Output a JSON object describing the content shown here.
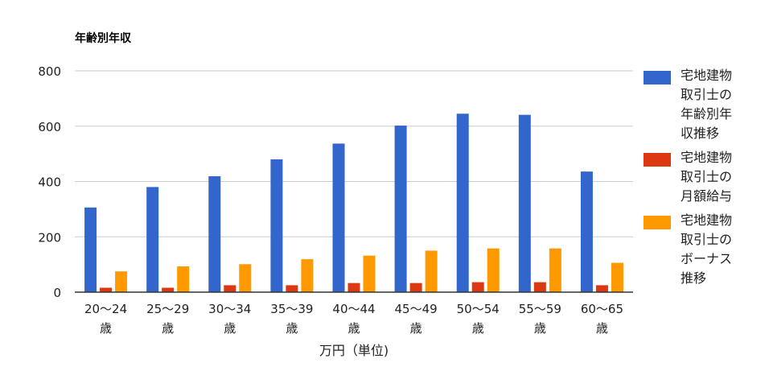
{
  "chart_data": {
    "type": "bar",
    "title": "年齢別年収",
    "xlabel": "万円（単位)",
    "ylabel": "",
    "ylim": [
      0,
      800
    ],
    "yticks": [
      0,
      200,
      400,
      600,
      800
    ],
    "grid": true,
    "legend": "right",
    "categories": [
      [
        "20～24",
        "歳"
      ],
      [
        "25～29",
        "歳"
      ],
      [
        "30～34",
        "歳"
      ],
      [
        "35～39",
        "歳"
      ],
      [
        "40～44",
        "歳"
      ],
      [
        "45～49",
        "歳"
      ],
      [
        "50～54",
        "歳"
      ],
      [
        "55～59",
        "歳"
      ],
      [
        "60～65",
        "歳"
      ]
    ],
    "series": [
      {
        "name": "宅地建物取引士の年齢別年収推移",
        "color": "#3366cc",
        "values": [
          306,
          380,
          419,
          480,
          537,
          602,
          645,
          641,
          436
        ]
      },
      {
        "name": "宅地建物取引士の月額給与",
        "color": "#dc3912",
        "values": [
          16,
          16,
          25,
          25,
          33,
          33,
          36,
          36,
          25
        ]
      },
      {
        "name": "宅地建物取引士のボーナス推移",
        "color": "#ff9900",
        "values": [
          75,
          93,
          101,
          119,
          132,
          150,
          158,
          158,
          106
        ]
      }
    ]
  }
}
